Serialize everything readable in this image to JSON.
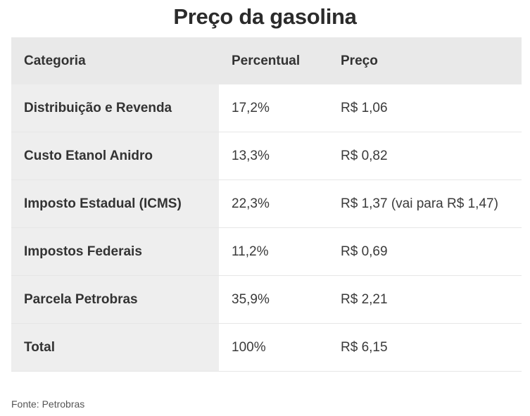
{
  "title": "Preço da gasolina",
  "table": {
    "headers": [
      "Categoria",
      "Percentual",
      "Preço"
    ],
    "rows": [
      {
        "categoria": "Distribuição e Revenda",
        "percentual": "17,2%",
        "preco": "R$ 1,06"
      },
      {
        "categoria": "Custo Etanol Anidro",
        "percentual": "13,3%",
        "preco": "R$ 0,82"
      },
      {
        "categoria": "Imposto Estadual (ICMS)",
        "percentual": "22,3%",
        "preco": "R$ 1,37 (vai para R$ 1,47)"
      },
      {
        "categoria": "Impostos Federais",
        "percentual": "11,2%",
        "preco": "R$ 0,69"
      },
      {
        "categoria": "Parcela Petrobras",
        "percentual": "35,9%",
        "preco": "R$ 2,21"
      },
      {
        "categoria": "Total",
        "percentual": "100%",
        "preco": "R$ 6,15"
      }
    ]
  },
  "source": "Fonte: Petrobras"
}
